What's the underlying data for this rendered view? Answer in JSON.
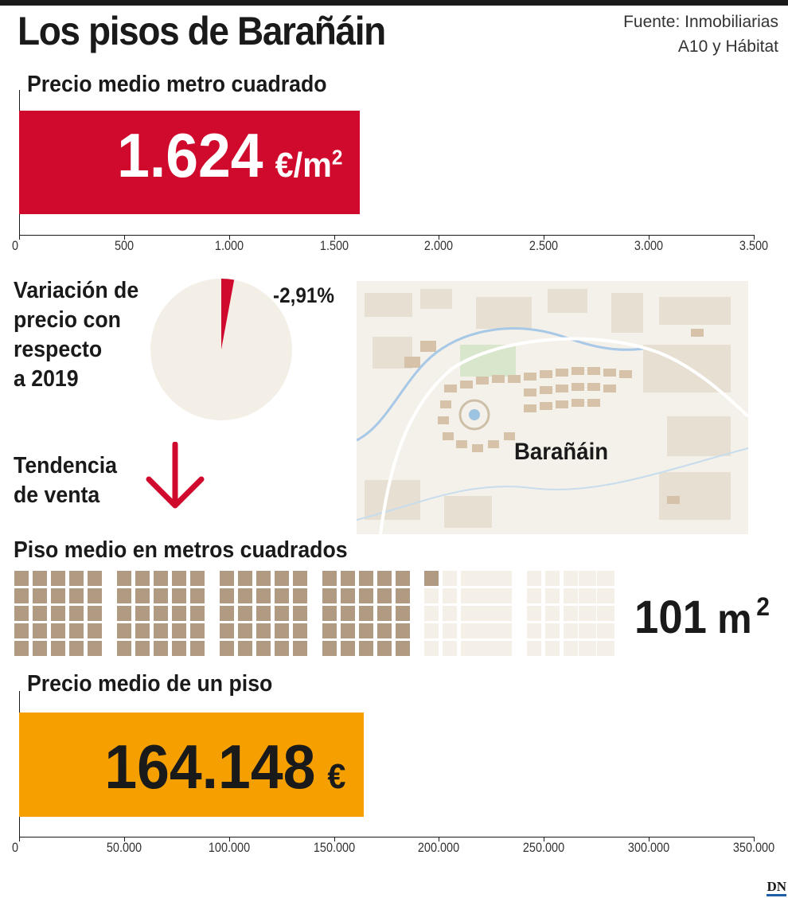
{
  "title": "Los pisos de Barañáin",
  "source_line1": "Fuente: Inmobiliarias",
  "source_line2": "A10 y Hábitat",
  "colors": {
    "red": "#cf0a2c",
    "orange": "#f5a000",
    "beige": "#f3efe7",
    "brown": "#b09a82",
    "light_square": "#f4efe7"
  },
  "chart_data": [
    {
      "type": "bar",
      "title": "Precio medio metro cuadrado",
      "categories": [
        ""
      ],
      "values": [
        1624
      ],
      "value_label": "1.624",
      "unit_main": "€/m",
      "unit_exp": "2",
      "xlim": [
        0,
        3500
      ],
      "ticks": [
        "0",
        "500",
        "1.000",
        "1.500",
        "2.000",
        "2.500",
        "3.000",
        "3.500"
      ],
      "color": "#cf0a2c"
    },
    {
      "type": "pie",
      "title_lines": [
        "Variación de",
        "precio con",
        "respecto",
        "a 2019"
      ],
      "values": [
        2.91,
        97.09
      ],
      "value_label": "-2,91%",
      "colors": [
        "#cf0a2c",
        "#f3efe7"
      ]
    },
    {
      "type": "waffle",
      "title": "Piso medio en metros cuadrados",
      "filled": 101,
      "total": 200,
      "value_label": "101",
      "unit_main": "m",
      "unit_exp": "2"
    },
    {
      "type": "bar",
      "title": "Precio medio de un piso",
      "categories": [
        ""
      ],
      "values": [
        164148
      ],
      "value_label": "164.148",
      "unit_main": "€",
      "xlim": [
        0,
        350000
      ],
      "ticks": [
        "0",
        "50.000",
        "100.000",
        "150.000",
        "200.000",
        "250.000",
        "300.000",
        "350.000"
      ],
      "color": "#f5a000"
    }
  ],
  "trend": {
    "lines": [
      "Tendencia",
      "de venta"
    ],
    "icon": "arrow-down-icon"
  },
  "map": {
    "label": "Barañáin"
  },
  "logo": "DN"
}
